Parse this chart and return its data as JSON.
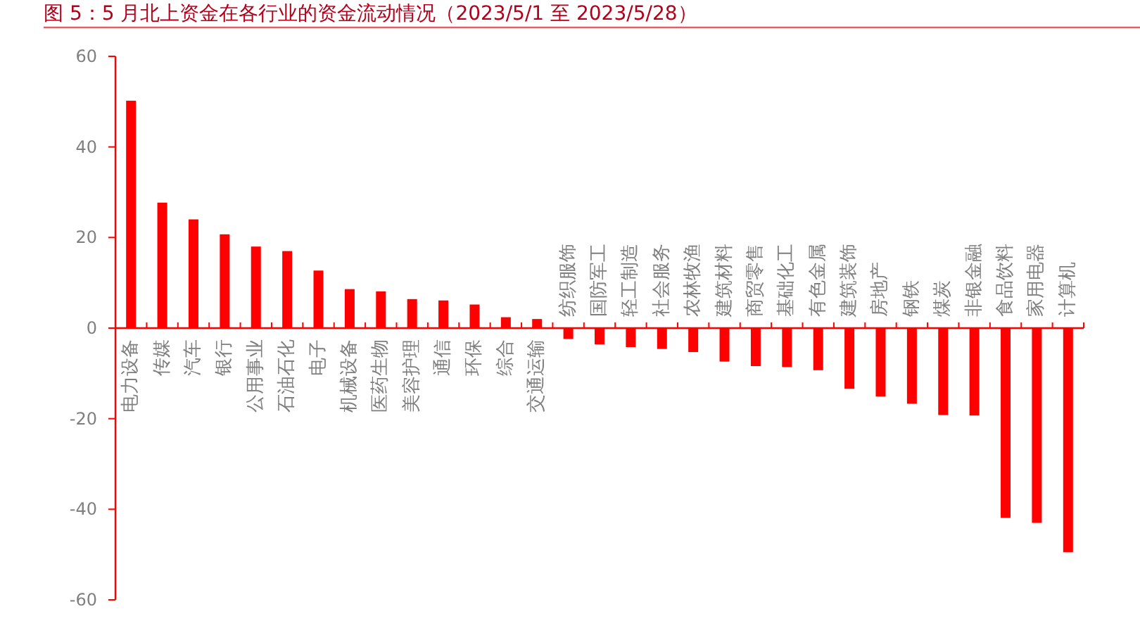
{
  "chart_data": {
    "type": "bar",
    "title": "图 5：5 月北上资金在各行业的资金流动情况（2023/5/1 至 2023/5/28）",
    "categories": [
      "电力设备",
      "传媒",
      "汽车",
      "银行",
      "公用事业",
      "石油石化",
      "电子",
      "机械设备",
      "医药生物",
      "美容护理",
      "通信",
      "环保",
      "综合",
      "交通运输",
      "纺织服饰",
      "国防军工",
      "轻工制造",
      "社会服务",
      "农林牧渔",
      "建筑材料",
      "商贸零售",
      "基础化工",
      "有色金属",
      "建筑装饰",
      "房地产",
      "钢铁",
      "煤炭",
      "非银金融",
      "食品饮料",
      "家用电器",
      "计算机"
    ],
    "values": [
      50.2,
      27.7,
      24.0,
      20.7,
      18.0,
      17.0,
      12.7,
      8.6,
      8.1,
      6.4,
      6.1,
      5.2,
      2.4,
      2.0,
      -2.4,
      -3.6,
      -4.2,
      -4.6,
      -5.3,
      -7.4,
      -8.4,
      -8.6,
      -9.3,
      -13.4,
      -15.1,
      -16.7,
      -19.2,
      -19.3,
      -41.9,
      -43.0,
      -49.5
    ],
    "color": "#ff0000",
    "ylim": [
      -60,
      60
    ],
    "yticks": [
      -60,
      -40,
      -20,
      0,
      20,
      40,
      60
    ]
  }
}
